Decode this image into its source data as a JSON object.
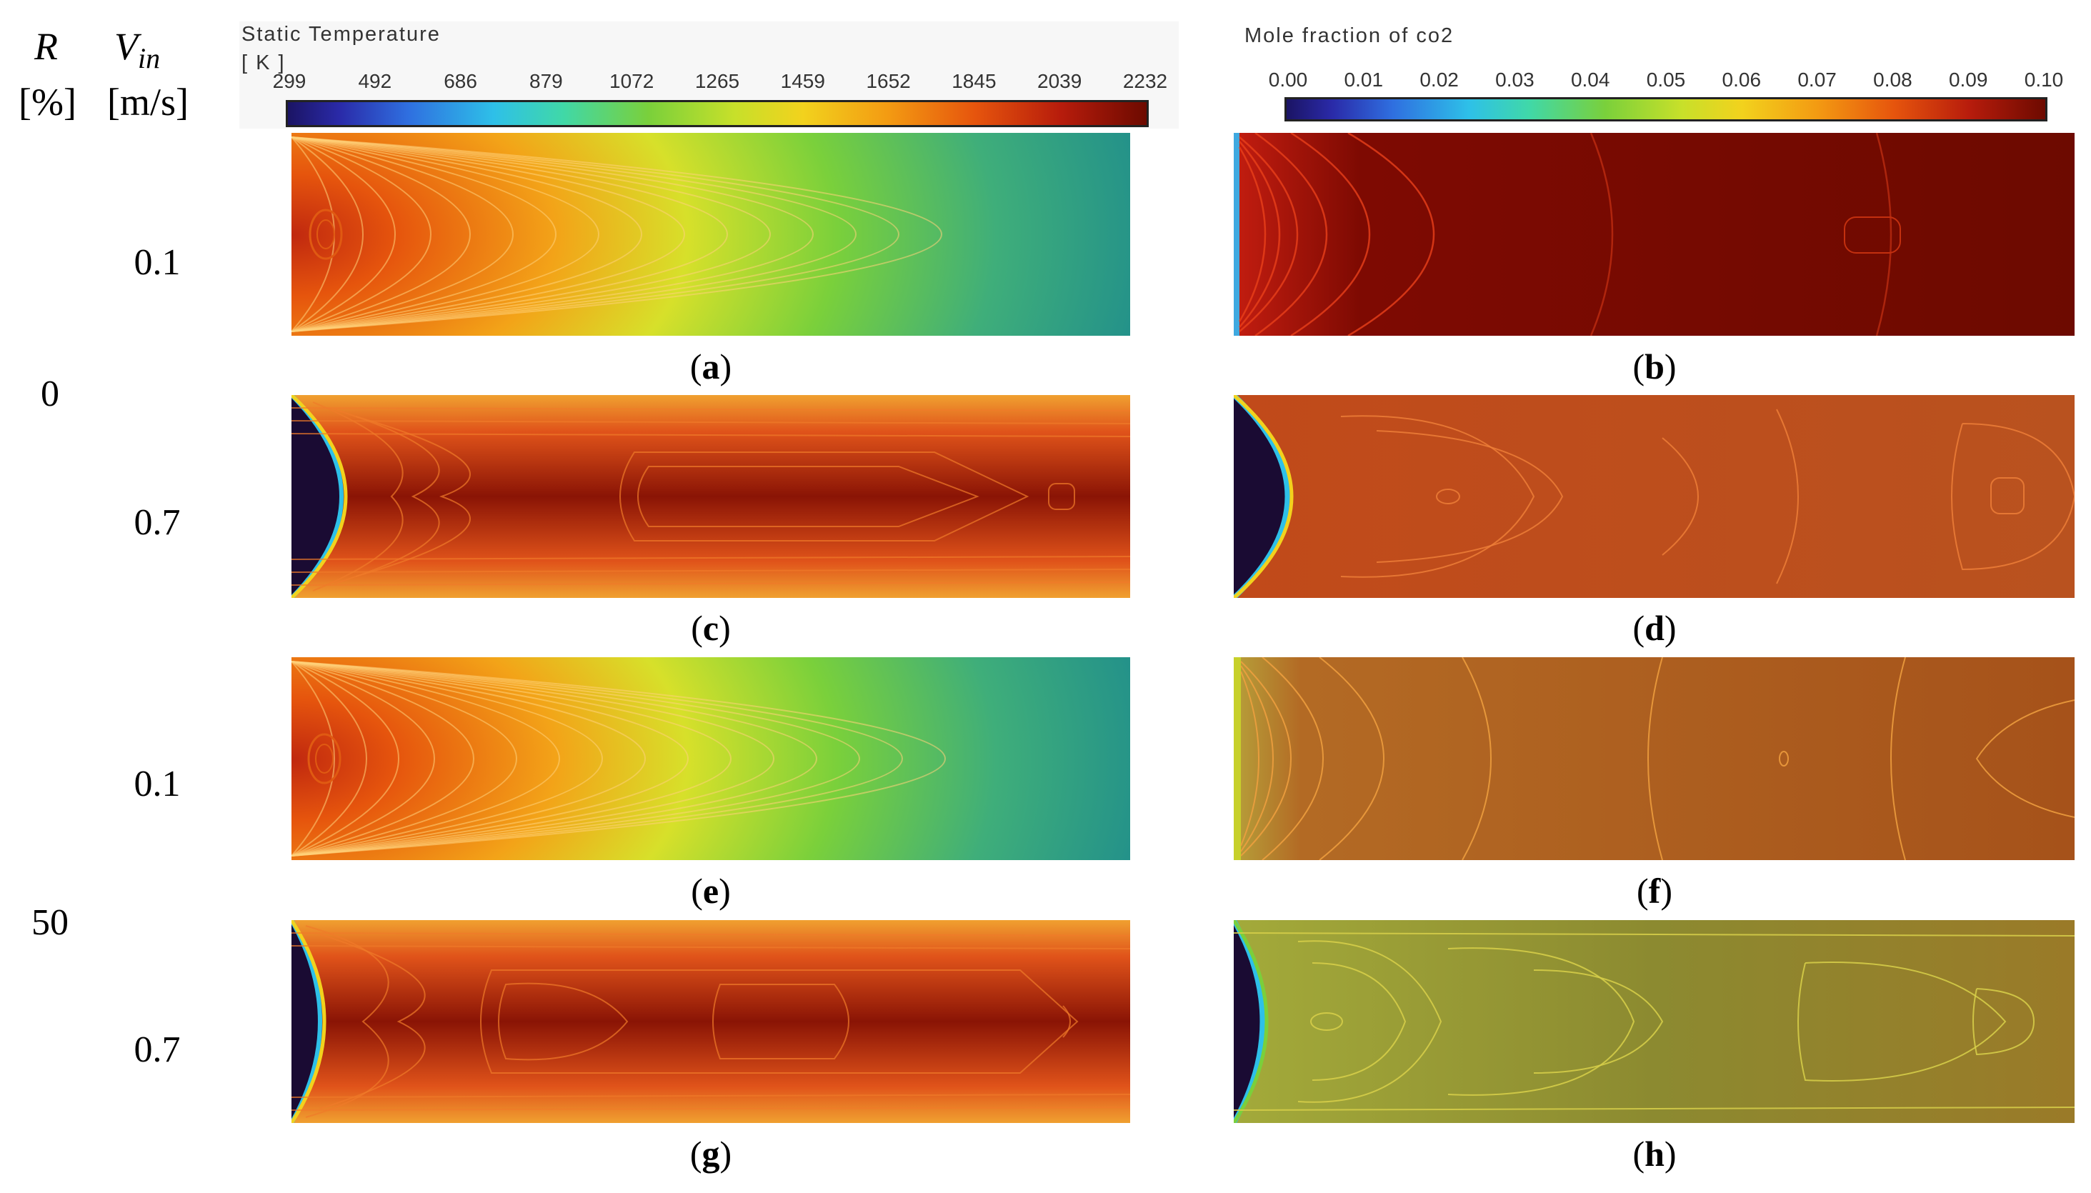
{
  "left_labels": {
    "R_symbol": "R",
    "R_unit": "[%]",
    "V_symbol": "V",
    "V_sub": "in",
    "V_unit": "[m/s]",
    "r_values": [
      "0",
      "50"
    ],
    "v_values": [
      "0.1",
      "0.7",
      "0.1",
      "0.7"
    ]
  },
  "temperature_colorbar": {
    "title_line1": "Static Temperature",
    "title_line2": "[ K ]",
    "ticks": [
      "299",
      "492",
      "686",
      "879",
      "1072",
      "1265",
      "1459",
      "1652",
      "1845",
      "2039",
      "2232"
    ]
  },
  "co2_colorbar": {
    "title": "Mole fraction of  co2",
    "ticks": [
      "0.00",
      "0.01",
      "0.02",
      "0.03",
      "0.04",
      "0.05",
      "0.06",
      "0.07",
      "0.08",
      "0.09",
      "0.10"
    ]
  },
  "panels": [
    {
      "letter": "a",
      "field": "temperature",
      "R": "0",
      "Vin": "0.1"
    },
    {
      "letter": "b",
      "field": "co2",
      "R": "0",
      "Vin": "0.1"
    },
    {
      "letter": "c",
      "field": "temperature",
      "R": "0",
      "Vin": "0.7"
    },
    {
      "letter": "d",
      "field": "co2",
      "R": "0",
      "Vin": "0.7"
    },
    {
      "letter": "e",
      "field": "temperature",
      "R": "50",
      "Vin": "0.1"
    },
    {
      "letter": "f",
      "field": "co2",
      "R": "50",
      "Vin": "0.1"
    },
    {
      "letter": "g",
      "field": "temperature",
      "R": "50",
      "Vin": "0.7"
    },
    {
      "letter": "h",
      "field": "co2",
      "R": "50",
      "Vin": "0.7"
    }
  ],
  "colors": {
    "jet_dark": "#1b1464",
    "jet_mid": "#7ad03b",
    "jet_hot": "#7a0a00",
    "teal_cool": "#1e8a8a"
  }
}
